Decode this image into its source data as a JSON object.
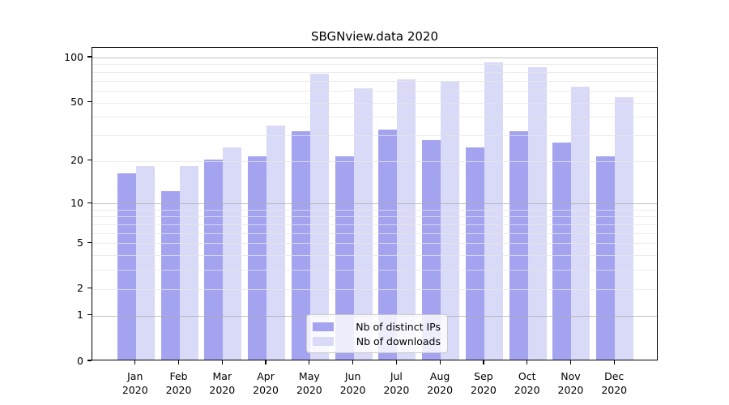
{
  "title": "SBGNview.data 2020",
  "chart_data": {
    "type": "bar",
    "title": "SBGNview.data 2020",
    "x_categories": [
      "Jan",
      "Feb",
      "Mar",
      "Apr",
      "May",
      "Jun",
      "Jul",
      "Aug",
      "Sep",
      "Oct",
      "Nov",
      "Dec"
    ],
    "x_year_label": "2020",
    "series": [
      {
        "name": "Nb of distinct IPs",
        "color": "#a3a3f0",
        "values": [
          16,
          12,
          20,
          21,
          31,
          21,
          32,
          27,
          24,
          31,
          26,
          21
        ]
      },
      {
        "name": "Nb of downloads",
        "color": "#d9d9f8",
        "values": [
          18,
          18,
          24,
          34,
          76,
          61,
          70,
          68,
          90,
          84,
          62,
          53
        ]
      }
    ],
    "y_scale": "log10(1+y)",
    "y_ticks": [
      0,
      1,
      2,
      5,
      10,
      20,
      50,
      100
    ],
    "y_gridlines_major": [
      1,
      10,
      100
    ],
    "y_gridlines_minor": [
      2,
      3,
      4,
      5,
      6,
      7,
      8,
      9,
      20,
      30,
      40,
      50,
      60,
      70,
      80,
      90
    ],
    "ylim": [
      0,
      116
    ],
    "grid": true,
    "legend_position": "lower center",
    "spine_color": "#000000"
  }
}
